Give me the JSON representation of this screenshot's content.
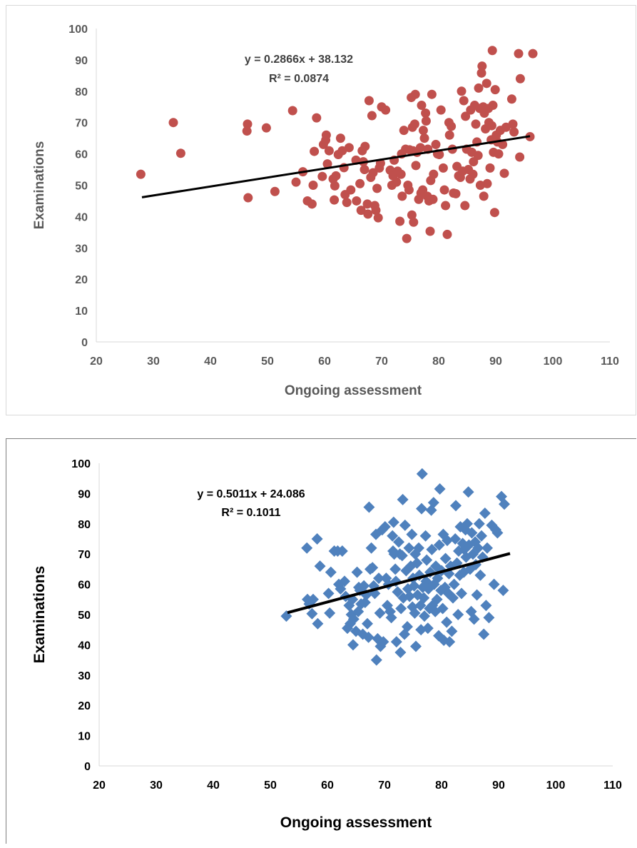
{
  "chart_data": [
    {
      "type": "scatter",
      "xlabel": "Ongoing assessment",
      "ylabel": "Examinations",
      "xlim": [
        20,
        110
      ],
      "ylim": [
        0,
        100
      ],
      "xticks": [
        20,
        30,
        40,
        50,
        60,
        70,
        80,
        90,
        100,
        110
      ],
      "yticks": [
        0,
        10,
        20,
        30,
        40,
        50,
        60,
        70,
        80,
        90,
        100
      ],
      "grid": false,
      "marker": "circle",
      "marker_color": "#c0504d",
      "trend_color": "#000000",
      "trendline": {
        "slope": 0.2866,
        "intercept": 38.132,
        "x_range": [
          28,
          96
        ]
      },
      "equation": "y = 0.2866x + 38.132",
      "r2": "R² = 0.0874",
      "points": [
        [
          27.8,
          53.5
        ],
        [
          33.5,
          70
        ],
        [
          34.8,
          60.2
        ],
        [
          46.5,
          69.5
        ],
        [
          46.4,
          67.3
        ],
        [
          46.6,
          46
        ],
        [
          49.8,
          68.3
        ],
        [
          51.3,
          48
        ],
        [
          54.4,
          73.8
        ],
        [
          55,
          51
        ],
        [
          56.2,
          54.3
        ],
        [
          57,
          45
        ],
        [
          57.8,
          44
        ],
        [
          58,
          50
        ],
        [
          58.2,
          60.8
        ],
        [
          58.6,
          71.5
        ],
        [
          59.6,
          52.8
        ],
        [
          59.8,
          63
        ],
        [
          60.2,
          64.4
        ],
        [
          60.3,
          66
        ],
        [
          60.5,
          56.8
        ],
        [
          60.8,
          61
        ],
        [
          61.5,
          52
        ],
        [
          61.7,
          45.3
        ],
        [
          61.8,
          49.8
        ],
        [
          62,
          53
        ],
        [
          62.4,
          59.8
        ],
        [
          62.8,
          65
        ],
        [
          63.1,
          61
        ],
        [
          63.4,
          55.6
        ],
        [
          63.6,
          47
        ],
        [
          63.9,
          44.5
        ],
        [
          64.3,
          62
        ],
        [
          64.6,
          48.5
        ],
        [
          65.5,
          58
        ],
        [
          65.6,
          45
        ],
        [
          66.2,
          50.5
        ],
        [
          66.4,
          42
        ],
        [
          66.6,
          61
        ],
        [
          66.8,
          57.5
        ],
        [
          67,
          55
        ],
        [
          67.1,
          62.4
        ],
        [
          67.5,
          44
        ],
        [
          67.6,
          40.8
        ],
        [
          67.8,
          77
        ],
        [
          68.1,
          52.5
        ],
        [
          68.3,
          72.2
        ],
        [
          68.5,
          54
        ],
        [
          68.8,
          43.5
        ],
        [
          69,
          42
        ],
        [
          69.2,
          49
        ],
        [
          69.4,
          39.6
        ],
        [
          69.6,
          55.5
        ],
        [
          69.8,
          57
        ],
        [
          70,
          75
        ],
        [
          70.7,
          74
        ],
        [
          71.5,
          54.8
        ],
        [
          71.8,
          50
        ],
        [
          72,
          53
        ],
        [
          72.2,
          58
        ],
        [
          72.6,
          51
        ],
        [
          72.8,
          54.5
        ],
        [
          73.2,
          38.5
        ],
        [
          73.4,
          53.5
        ],
        [
          73.5,
          60
        ],
        [
          73.6,
          46.5
        ],
        [
          73.9,
          67.5
        ],
        [
          74.2,
          61.5
        ],
        [
          74.4,
          33
        ],
        [
          74.6,
          50
        ],
        [
          74.8,
          48.5
        ],
        [
          74.9,
          61.3
        ],
        [
          75.2,
          78
        ],
        [
          75.3,
          40.5
        ],
        [
          75.4,
          68.5
        ],
        [
          75.5,
          61
        ],
        [
          75.6,
          38.2
        ],
        [
          75.8,
          69.5
        ],
        [
          75.9,
          79
        ],
        [
          76,
          56.3
        ],
        [
          76.2,
          60.5
        ],
        [
          76.5,
          45.5
        ],
        [
          76.8,
          62
        ],
        [
          76.9,
          47.5
        ],
        [
          77,
          75.5
        ],
        [
          77.2,
          48.5
        ],
        [
          77.3,
          67.5
        ],
        [
          77.5,
          65
        ],
        [
          77.7,
          73
        ],
        [
          77.8,
          70.5
        ],
        [
          78,
          46.5
        ],
        [
          78.1,
          61.5
        ],
        [
          78.3,
          45
        ],
        [
          78.5,
          35.3
        ],
        [
          78.6,
          51.5
        ],
        [
          78.8,
          79
        ],
        [
          79,
          45.5
        ],
        [
          79.1,
          53.5
        ],
        [
          79.5,
          63
        ],
        [
          79.8,
          60
        ],
        [
          80.1,
          59.8
        ],
        [
          80.4,
          74
        ],
        [
          80.8,
          55.5
        ],
        [
          81,
          48.5
        ],
        [
          81.2,
          43.5
        ],
        [
          81.5,
          34.3
        ],
        [
          81.8,
          70
        ],
        [
          81.9,
          66
        ],
        [
          82.2,
          68.8
        ],
        [
          82.4,
          61.5
        ],
        [
          82.6,
          47.5
        ],
        [
          83,
          47.3
        ],
        [
          83.2,
          56
        ],
        [
          83.5,
          53
        ],
        [
          83.8,
          52.5
        ],
        [
          84,
          80
        ],
        [
          84.2,
          54.5
        ],
        [
          84.4,
          77
        ],
        [
          84.6,
          43.5
        ],
        [
          84.7,
          72
        ],
        [
          84.9,
          61.5
        ],
        [
          85.2,
          55
        ],
        [
          85.5,
          52
        ],
        [
          85.6,
          74
        ],
        [
          85.8,
          60.5
        ],
        [
          86,
          53.5
        ],
        [
          86.1,
          57.5
        ],
        [
          86.3,
          75.5
        ],
        [
          86.5,
          69.5
        ],
        [
          86.7,
          63.8
        ],
        [
          86.9,
          59.5
        ],
        [
          87,
          81
        ],
        [
          87.2,
          74.5
        ],
        [
          87.3,
          50
        ],
        [
          87.5,
          85.8
        ],
        [
          87.6,
          88
        ],
        [
          87.8,
          75
        ],
        [
          87.9,
          46.5
        ],
        [
          88,
          73
        ],
        [
          88.2,
          68
        ],
        [
          88.4,
          82.5
        ],
        [
          88.5,
          50.5
        ],
        [
          88.7,
          74.5
        ],
        [
          88.8,
          70
        ],
        [
          89,
          55.5
        ],
        [
          89.2,
          64.5
        ],
        [
          89.3,
          69
        ],
        [
          89.4,
          93
        ],
        [
          89.5,
          75.5
        ],
        [
          89.6,
          60.5
        ],
        [
          89.8,
          41.3
        ],
        [
          89.9,
          80.5
        ],
        [
          90.1,
          66
        ],
        [
          90.3,
          63.8
        ],
        [
          90.5,
          60
        ],
        [
          90.8,
          67.5
        ],
        [
          91.2,
          63
        ],
        [
          91.5,
          53.8
        ],
        [
          91.8,
          68.5
        ],
        [
          92.8,
          77.5
        ],
        [
          93,
          69.5
        ],
        [
          93.2,
          67
        ],
        [
          94,
          92
        ],
        [
          94.2,
          59
        ],
        [
          94.3,
          84
        ],
        [
          96,
          65.5
        ],
        [
          96.5,
          92
        ]
      ]
    },
    {
      "type": "scatter",
      "xlabel": "Ongoing assessment",
      "ylabel": "Examinations",
      "xlim": [
        20,
        110
      ],
      "ylim": [
        0,
        100
      ],
      "xticks": [
        20,
        30,
        40,
        50,
        60,
        70,
        80,
        90,
        100,
        110
      ],
      "yticks": [
        0,
        10,
        20,
        30,
        40,
        50,
        60,
        70,
        80,
        90,
        100
      ],
      "grid": false,
      "marker": "diamond",
      "marker_color": "#4f81bd",
      "trend_color": "#000000",
      "trendline": {
        "slope": 0.5011,
        "intercept": 24.086,
        "x_range": [
          53,
          92
        ]
      },
      "equation": "y = 0.5011x + 24.086",
      "r2": "R² = 0.1011",
      "points": [
        [
          52.8,
          49.5
        ],
        [
          56.4,
          72
        ],
        [
          56.5,
          55
        ],
        [
          56.8,
          53.5
        ],
        [
          57.3,
          50.3
        ],
        [
          57.5,
          55
        ],
        [
          58.2,
          75
        ],
        [
          58.3,
          47
        ],
        [
          58.7,
          66
        ],
        [
          60.2,
          57
        ],
        [
          60.4,
          50.5
        ],
        [
          60.6,
          64
        ],
        [
          61.2,
          71
        ],
        [
          61.8,
          71
        ],
        [
          62,
          60
        ],
        [
          62.3,
          58.5
        ],
        [
          62.6,
          71
        ],
        [
          63,
          61
        ],
        [
          63.2,
          56
        ],
        [
          63.5,
          45.5
        ],
        [
          63.8,
          53
        ],
        [
          64,
          47
        ],
        [
          64.2,
          50
        ],
        [
          64.4,
          55
        ],
        [
          64.5,
          40
        ],
        [
          64.6,
          48.5
        ],
        [
          65,
          44.5
        ],
        [
          65.2,
          64
        ],
        [
          65.4,
          51
        ],
        [
          65.5,
          59
        ],
        [
          65.7,
          58
        ],
        [
          65.9,
          53.5
        ],
        [
          66.2,
          43.5
        ],
        [
          66.4,
          59.5
        ],
        [
          66.6,
          54
        ],
        [
          66.8,
          56.5
        ],
        [
          67,
          47
        ],
        [
          67.2,
          42.5
        ],
        [
          67.3,
          85.5
        ],
        [
          67.5,
          65
        ],
        [
          67.7,
          72
        ],
        [
          67.9,
          65.5
        ],
        [
          68.1,
          59.5
        ],
        [
          68.3,
          57
        ],
        [
          68.5,
          76.5
        ],
        [
          68.6,
          35
        ],
        [
          68.8,
          42
        ],
        [
          69,
          62
        ],
        [
          69.2,
          50.5
        ],
        [
          69.3,
          39.5
        ],
        [
          69.6,
          78
        ],
        [
          69.8,
          41
        ],
        [
          70.1,
          79
        ],
        [
          70.3,
          62
        ],
        [
          70.5,
          53
        ],
        [
          70.7,
          60
        ],
        [
          71,
          51
        ],
        [
          71.2,
          49
        ],
        [
          71.4,
          76
        ],
        [
          71.5,
          71
        ],
        [
          71.6,
          80.5
        ],
        [
          71.7,
          70
        ],
        [
          71.9,
          65
        ],
        [
          72,
          61
        ],
        [
          72.1,
          41
        ],
        [
          72.3,
          57.5
        ],
        [
          72.5,
          74
        ],
        [
          72.7,
          70
        ],
        [
          72.8,
          37.5
        ],
        [
          72.9,
          52
        ],
        [
          73.1,
          69.5
        ],
        [
          73.2,
          88
        ],
        [
          73.3,
          55.5
        ],
        [
          73.5,
          43.5
        ],
        [
          73.6,
          79.5
        ],
        [
          73.8,
          64.5
        ],
        [
          74,
          46
        ],
        [
          74.1,
          58.5
        ],
        [
          74.3,
          72
        ],
        [
          74.4,
          56
        ],
        [
          74.6,
          66
        ],
        [
          74.8,
          76.5
        ],
        [
          74.9,
          52.5
        ],
        [
          75,
          62
        ],
        [
          75.2,
          59.5
        ],
        [
          75.3,
          50.5
        ],
        [
          75.4,
          70
        ],
        [
          75.5,
          39.5
        ],
        [
          75.7,
          67
        ],
        [
          75.8,
          56.5
        ],
        [
          76,
          72
        ],
        [
          76.1,
          63
        ],
        [
          76.3,
          53
        ],
        [
          76.4,
          45
        ],
        [
          76.5,
          85
        ],
        [
          76.6,
          96.5
        ],
        [
          76.7,
          59
        ],
        [
          76.9,
          55.5
        ],
        [
          77,
          49.5
        ],
        [
          77.2,
          76
        ],
        [
          77.3,
          61
        ],
        [
          77.4,
          68
        ],
        [
          77.6,
          45.5
        ],
        [
          77.7,
          58.5
        ],
        [
          77.9,
          52
        ],
        [
          78,
          64
        ],
        [
          78.2,
          84.5
        ],
        [
          78.3,
          71.5
        ],
        [
          78.4,
          53
        ],
        [
          78.6,
          87
        ],
        [
          78.7,
          60
        ],
        [
          78.9,
          51
        ],
        [
          79,
          66
        ],
        [
          79.2,
          55
        ],
        [
          79.3,
          62
        ],
        [
          79.5,
          43
        ],
        [
          79.6,
          73
        ],
        [
          79.7,
          91.5
        ],
        [
          79.9,
          58
        ],
        [
          80,
          64.5
        ],
        [
          80.2,
          52
        ],
        [
          80.3,
          76.5
        ],
        [
          80.4,
          41.5
        ],
        [
          80.6,
          59
        ],
        [
          80.7,
          68.5
        ],
        [
          80.9,
          47.5
        ],
        [
          81,
          74.5
        ],
        [
          81.2,
          57
        ],
        [
          81.3,
          63.5
        ],
        [
          81.4,
          41
        ],
        [
          81.6,
          66
        ],
        [
          81.8,
          44.5
        ],
        [
          82,
          55.5
        ],
        [
          82.2,
          60
        ],
        [
          82.4,
          75
        ],
        [
          82.5,
          86
        ],
        [
          82.7,
          67
        ],
        [
          82.9,
          50
        ],
        [
          83,
          71
        ],
        [
          83.2,
          63
        ],
        [
          83.3,
          79
        ],
        [
          83.5,
          57
        ],
        [
          83.7,
          73.5
        ],
        [
          83.9,
          64
        ],
        [
          84,
          71.5
        ],
        [
          84.2,
          78
        ],
        [
          84.3,
          69
        ],
        [
          84.5,
          80
        ],
        [
          84.7,
          90.5
        ],
        [
          84.8,
          73
        ],
        [
          85,
          65
        ],
        [
          85.2,
          51
        ],
        [
          85.3,
          77
        ],
        [
          85.5,
          70
        ],
        [
          85.7,
          48.5
        ],
        [
          85.9,
          74
        ],
        [
          86,
          66.5
        ],
        [
          86.2,
          56.5
        ],
        [
          86.4,
          72
        ],
        [
          86.6,
          80
        ],
        [
          86.8,
          63
        ],
        [
          87,
          76
        ],
        [
          87.2,
          69
        ],
        [
          87.4,
          43.5
        ],
        [
          87.6,
          83.5
        ],
        [
          87.8,
          53
        ],
        [
          88,
          72
        ],
        [
          88.3,
          49
        ],
        [
          88.8,
          79.5
        ],
        [
          89.2,
          60
        ],
        [
          89.5,
          78
        ],
        [
          89.8,
          77
        ],
        [
          90.5,
          89
        ],
        [
          90.8,
          58
        ],
        [
          91,
          86.5
        ]
      ]
    }
  ]
}
